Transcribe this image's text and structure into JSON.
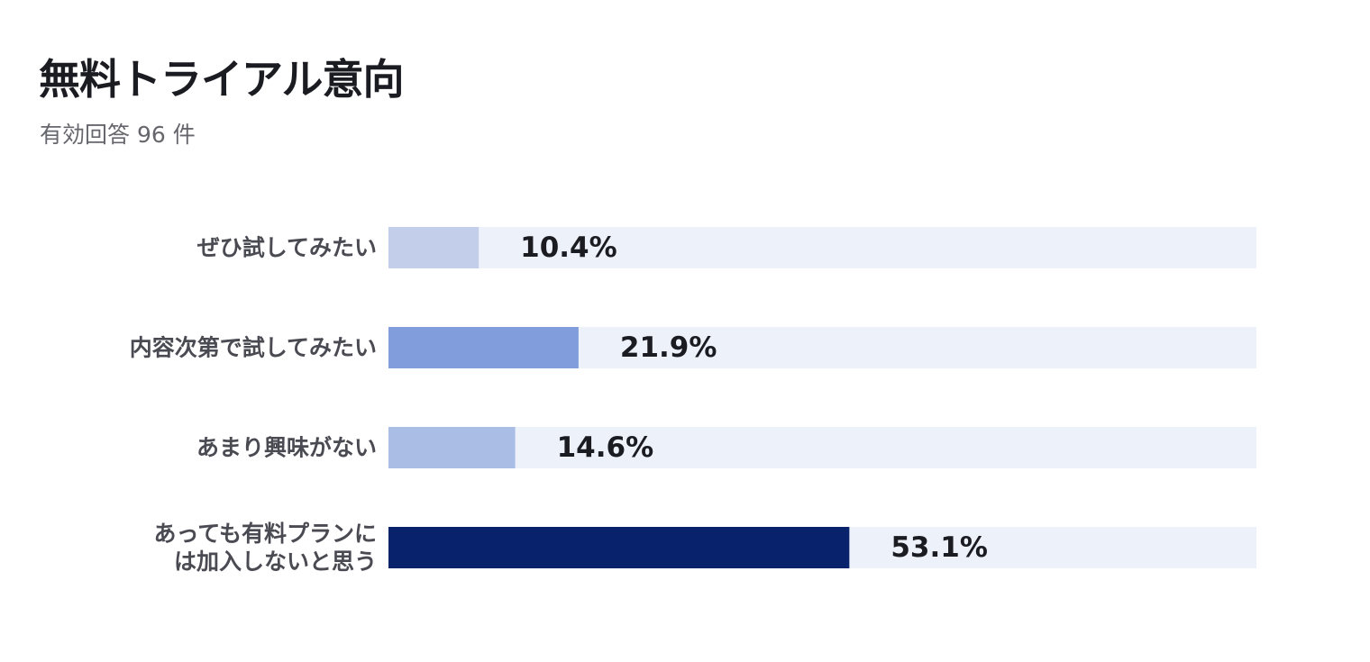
{
  "chart_data": {
    "type": "bar",
    "orientation": "horizontal",
    "title": "無料トライアル意向",
    "subtitle": "有効回答 96 件",
    "categories": [
      [
        "ぜひ試してみたい"
      ],
      [
        "内容次第で試してみたい"
      ],
      [
        "あまり興味がない"
      ],
      [
        "あっても有料プランに",
        "は加入しないと思う"
      ]
    ],
    "values": [
      10.4,
      21.9,
      14.6,
      53.1
    ],
    "value_labels": [
      "10.4%",
      "21.9%",
      "14.6%",
      "53.1%"
    ],
    "unit": "%",
    "xlim": [
      0,
      100
    ],
    "grid": false,
    "colors": {
      "bars": [
        "#c3cfea",
        "#819ddb",
        "#aabee5",
        "#08226b"
      ],
      "track": "#edf1fa"
    }
  }
}
